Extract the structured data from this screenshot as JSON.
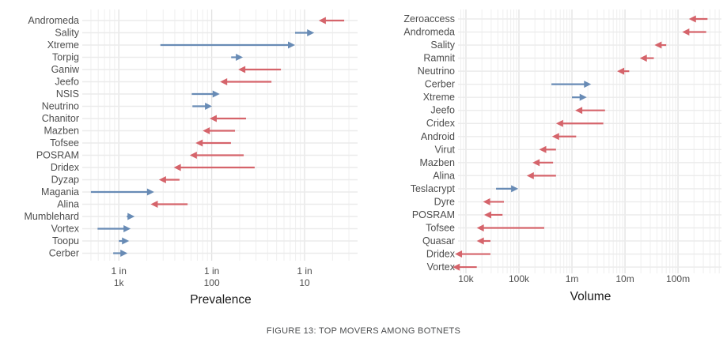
{
  "caption": "FIGURE 13: TOP MOVERS AMONG BOTNETS",
  "colors": {
    "increase_arrow": "#688bb5",
    "decrease_arrow": "#d5646b",
    "grid_major": "#e2e2e2",
    "grid_minor": "#efefef",
    "grid_row": "#ebebeb",
    "label_text": "#4d4d4d",
    "axis_title_text": "#1c1c1c",
    "caption_text": "#4a4c4e"
  },
  "chart_data": [
    {
      "type": "arrow-dumbbell",
      "panel": "left",
      "xlabel": "Prevalence",
      "x_scale": "log",
      "xlim": [
        0.00042,
        0.372
      ],
      "x_ticks": [
        {
          "value": 0.001,
          "lines": [
            "1 in",
            "1k"
          ]
        },
        {
          "value": 0.01,
          "lines": [
            "1 in",
            "100"
          ]
        },
        {
          "value": 0.1,
          "lines": [
            "1 in",
            "10"
          ]
        }
      ],
      "arrow_semantics": {
        "decrease": "red arrow pointing left (prevalence dropped)",
        "increase": "blue arrow pointing right (prevalence rose)"
      },
      "series": [
        {
          "name": "Andromeda",
          "from": 0.267,
          "to": 0.142,
          "change": "decrease"
        },
        {
          "name": "Sality",
          "from": 0.079,
          "to": 0.127,
          "change": "increase"
        },
        {
          "name": "Xtreme",
          "from": 0.0028,
          "to": 0.079,
          "change": "increase"
        },
        {
          "name": "Torpig",
          "from": 0.0162,
          "to": 0.0217,
          "change": "increase"
        },
        {
          "name": "Ganiw",
          "from": 0.0556,
          "to": 0.0193,
          "change": "decrease"
        },
        {
          "name": "Jeefo",
          "from": 0.044,
          "to": 0.0123,
          "change": "decrease"
        },
        {
          "name": "NSIS",
          "from": 0.0061,
          "to": 0.0122,
          "change": "increase"
        },
        {
          "name": "Neutrino",
          "from": 0.0062,
          "to": 0.0101,
          "change": "increase"
        },
        {
          "name": "Chanitor",
          "from": 0.0234,
          "to": 0.0095,
          "change": "decrease"
        },
        {
          "name": "Mazben",
          "from": 0.0178,
          "to": 0.008,
          "change": "decrease"
        },
        {
          "name": "Tofsee",
          "from": 0.0161,
          "to": 0.0067,
          "change": "decrease"
        },
        {
          "name": "POSRAM",
          "from": 0.0221,
          "to": 0.0058,
          "change": "decrease"
        },
        {
          "name": "Dridex",
          "from": 0.029,
          "to": 0.0039,
          "change": "decrease"
        },
        {
          "name": "Dyzap",
          "from": 0.0045,
          "to": 0.0027,
          "change": "decrease"
        },
        {
          "name": "Magania",
          "from": 0.0005,
          "to": 0.0024,
          "change": "increase"
        },
        {
          "name": "Alina",
          "from": 0.0055,
          "to": 0.0022,
          "change": "decrease"
        },
        {
          "name": "Mumblehard",
          "from": 0.00122,
          "to": 0.00148,
          "change": "increase"
        },
        {
          "name": "Vortex",
          "from": 0.00059,
          "to": 0.00134,
          "change": "increase"
        },
        {
          "name": "Toopu",
          "from": 0.001,
          "to": 0.00129,
          "change": "increase"
        },
        {
          "name": "Cerber",
          "from": 0.00087,
          "to": 0.00124,
          "change": "increase"
        }
      ]
    },
    {
      "type": "arrow-dumbbell",
      "panel": "right",
      "xlabel": "Volume",
      "x_scale": "log",
      "xlim": [
        7600,
        660000000
      ],
      "x_ticks": [
        {
          "value": 10000,
          "lines": [
            "10k"
          ]
        },
        {
          "value": 100000,
          "lines": [
            "100k"
          ]
        },
        {
          "value": 1000000,
          "lines": [
            "1m"
          ]
        },
        {
          "value": 10000000,
          "lines": [
            "10m"
          ]
        },
        {
          "value": 100000000,
          "lines": [
            "100m"
          ]
        }
      ],
      "arrow_semantics": {
        "decrease": "red arrow pointing left (volume dropped)",
        "increase": "blue arrow pointing right (volume rose)"
      },
      "series": [
        {
          "name": "Zeroaccess",
          "from": 360000000,
          "to": 160000000,
          "change": "decrease"
        },
        {
          "name": "Andromeda",
          "from": 340000000,
          "to": 120000000,
          "change": "decrease"
        },
        {
          "name": "Sality",
          "from": 60000000,
          "to": 36000000,
          "change": "decrease"
        },
        {
          "name": "Ramnit",
          "from": 35000000,
          "to": 19000000,
          "change": "decrease"
        },
        {
          "name": "Neutrino",
          "from": 12000000,
          "to": 7100000,
          "change": "decrease"
        },
        {
          "name": "Cerber",
          "from": 410000,
          "to": 2300000,
          "change": "increase"
        },
        {
          "name": "Xtreme",
          "from": 1000000,
          "to": 1900000,
          "change": "increase"
        },
        {
          "name": "Jeefo",
          "from": 4200000,
          "to": 1150000,
          "change": "decrease"
        },
        {
          "name": "Cridex",
          "from": 3900000,
          "to": 500000,
          "change": "decrease"
        },
        {
          "name": "Android",
          "from": 1200000,
          "to": 420000,
          "change": "decrease"
        },
        {
          "name": "Virut",
          "from": 500000,
          "to": 240000,
          "change": "decrease"
        },
        {
          "name": "Mazben",
          "from": 440000,
          "to": 180000,
          "change": "decrease"
        },
        {
          "name": "Alina",
          "from": 500000,
          "to": 140000,
          "change": "decrease"
        },
        {
          "name": "Teslacrypt",
          "from": 37000,
          "to": 97000,
          "change": "increase"
        },
        {
          "name": "Dyre",
          "from": 52000,
          "to": 21000,
          "change": "decrease"
        },
        {
          "name": "POSRAM",
          "from": 49000,
          "to": 22000,
          "change": "decrease"
        },
        {
          "name": "Tofsee",
          "from": 300000,
          "to": 16000,
          "change": "decrease"
        },
        {
          "name": "Quasar",
          "from": 29000,
          "to": 16000,
          "change": "decrease"
        },
        {
          "name": "Dridex",
          "from": 29000,
          "to": 6200,
          "change": "decrease"
        },
        {
          "name": "Vortex",
          "from": 16000,
          "to": 5600,
          "change": "decrease"
        }
      ]
    }
  ]
}
